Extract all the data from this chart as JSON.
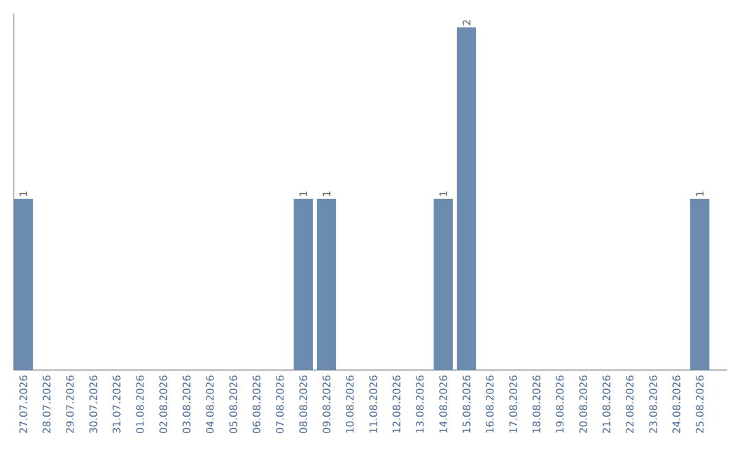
{
  "chart_data": {
    "type": "bar",
    "categories": [
      "27.07.2026",
      "28.07.2026",
      "29.07.2026",
      "30.07.2026",
      "31.07.2026",
      "01.08.2026",
      "02.08.2026",
      "03.08.2026",
      "04.08.2026",
      "05.08.2026",
      "06.08.2026",
      "07.08.2026",
      "08.08.2026",
      "09.08.2026",
      "10.08.2026",
      "11.08.2026",
      "12.08.2026",
      "13.08.2026",
      "14.08.2026",
      "15.08.2026",
      "16.08.2026",
      "17.08.2026",
      "18.08.2026",
      "19.08.2026",
      "20.08.2026",
      "21.08.2026",
      "22.08.2026",
      "23.08.2026",
      "24.08.2026",
      "25.08.2026"
    ],
    "values": [
      1,
      0,
      0,
      0,
      0,
      0,
      0,
      0,
      0,
      0,
      0,
      0,
      1,
      1,
      0,
      0,
      0,
      0,
      1,
      2,
      0,
      0,
      0,
      0,
      0,
      0,
      0,
      0,
      0,
      1
    ],
    "value_labels": [
      "1",
      null,
      null,
      null,
      null,
      null,
      null,
      null,
      null,
      null,
      null,
      null,
      "1",
      "1",
      null,
      null,
      null,
      null,
      "1",
      "2",
      null,
      null,
      null,
      null,
      null,
      null,
      null,
      null,
      null,
      "1"
    ],
    "color": "#6b8cae",
    "ylim": [
      0,
      2.08
    ],
    "tick_labels": "x"
  }
}
